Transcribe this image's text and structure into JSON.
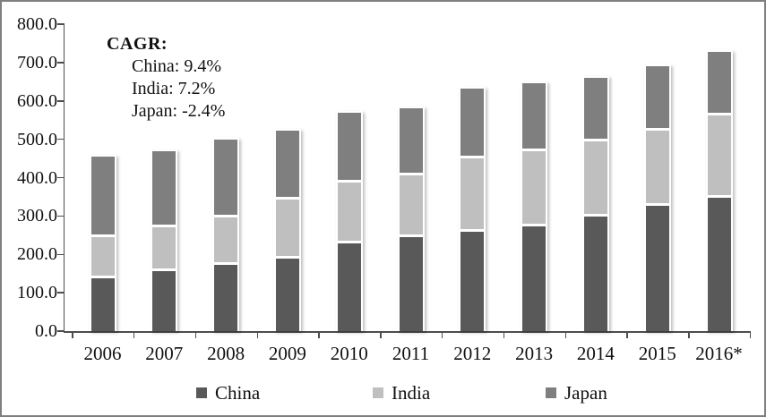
{
  "chart_data": {
    "type": "bar",
    "stacked": true,
    "title": "",
    "xlabel": "",
    "ylabel": "",
    "categories": [
      "2006",
      "2007",
      "2008",
      "2009",
      "2010",
      "2011",
      "2012",
      "2013",
      "2014",
      "2015",
      "2016*"
    ],
    "series": [
      {
        "name": "China",
        "color": "#595959",
        "values": [
          144,
          163,
          180,
          197,
          236,
          251,
          267,
          281,
          306,
          333,
          354
        ]
      },
      {
        "name": "India",
        "color": "#bfbfbf",
        "values": [
          108,
          115,
          124,
          152,
          158,
          162,
          190,
          194,
          195,
          196,
          216
        ]
      },
      {
        "name": "Japan",
        "color": "#7f7f7f",
        "values": [
          207,
          195,
          200,
          179,
          179,
          172,
          179,
          176,
          163,
          166,
          163
        ]
      }
    ],
    "ylim": [
      0,
      800
    ],
    "ytick_step": 100,
    "ytick_labels": [
      "0.0",
      "100.0",
      "200.0",
      "300.0",
      "400.0",
      "500.0",
      "600.0",
      "700.0",
      "800.0"
    ],
    "grid": false,
    "legend_position": "bottom"
  },
  "annotation": {
    "title": "CAGR:",
    "lines": [
      "China: 9.4%",
      "India: 7.2%",
      "Japan: -2.4%"
    ]
  },
  "colors": {
    "china": "#595959",
    "india": "#bfbfbf",
    "japan": "#7f7f7f",
    "axis": "#4d4d4d",
    "text": "#111111",
    "frame_border": "#7f7f7f",
    "background": "#ffffff"
  }
}
